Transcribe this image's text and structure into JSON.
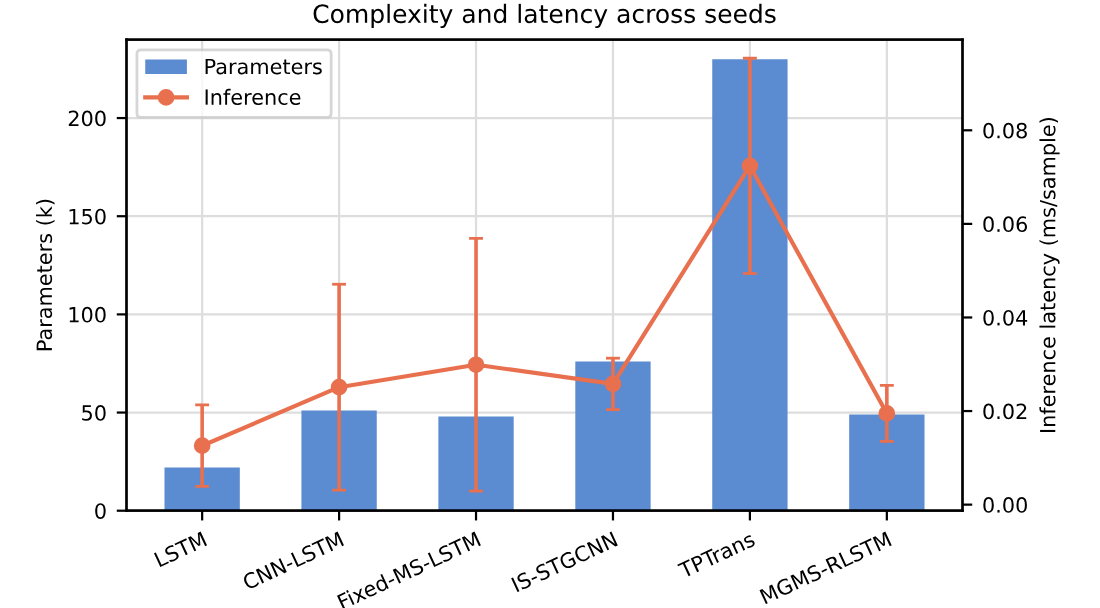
{
  "chart_data": {
    "type": "bar",
    "title": "Complexity and latency across seeds",
    "ylabel": "Parameters (k)",
    "y2label": "Inference latency (ms/sample)",
    "categories": [
      "LSTM",
      "CNN-LSTM",
      "Fixed-MS-LSTM",
      "IS-STGCNN",
      "TPTrans",
      "MGMS-RLSTM"
    ],
    "series": [
      {
        "name": "Parameters",
        "color": "#5b8bd0",
        "values": [
          22,
          51,
          48,
          76,
          230,
          49
        ]
      },
      {
        "name": "Inference",
        "type": "line",
        "axis": "y2",
        "color": "#e8704f",
        "marker": "circle",
        "values": [
          0.0126,
          0.0251,
          0.0299,
          0.0258,
          0.0724,
          0.0195
        ],
        "errors": [
          0.0087,
          0.022,
          0.027,
          0.0055,
          0.023,
          0.006
        ]
      }
    ],
    "ylim": [
      0,
      240
    ],
    "yticks": [
      0,
      50,
      100,
      150,
      200
    ],
    "y2lim": [
      -0.0013,
      0.0994
    ],
    "y2ticks": [
      {
        "value": 0,
        "label": "0.00"
      },
      {
        "value": 0.02,
        "label": "0.02"
      },
      {
        "value": 0.04,
        "label": "0.04"
      },
      {
        "value": 0.06,
        "label": "0.06"
      },
      {
        "value": 0.08,
        "label": "0.08"
      }
    ],
    "grid": true,
    "legend": "top left"
  }
}
